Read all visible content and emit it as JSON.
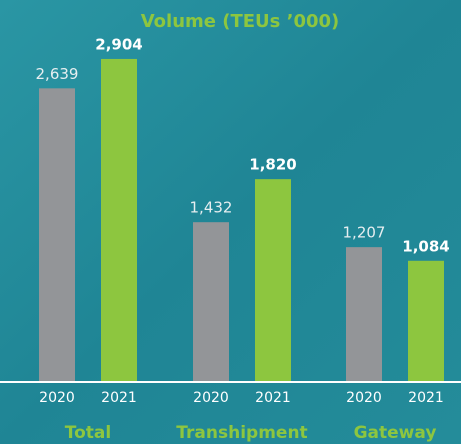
{
  "chart_data": {
    "type": "bar",
    "title": "Volume (TEUs ’000)",
    "categories": [
      "Total",
      "Transhipment",
      "Gateway"
    ],
    "series": [
      {
        "name": "2020",
        "color": "#939598",
        "values": [
          2639,
          1432,
          1207
        ],
        "value_labels": [
          "2,639",
          "1,432",
          "1,207"
        ]
      },
      {
        "name": "2021",
        "color": "#8dc63f",
        "values": [
          2904,
          1820,
          1084
        ],
        "value_labels": [
          "2,904",
          "1,820",
          "1,084"
        ]
      }
    ]
  }
}
